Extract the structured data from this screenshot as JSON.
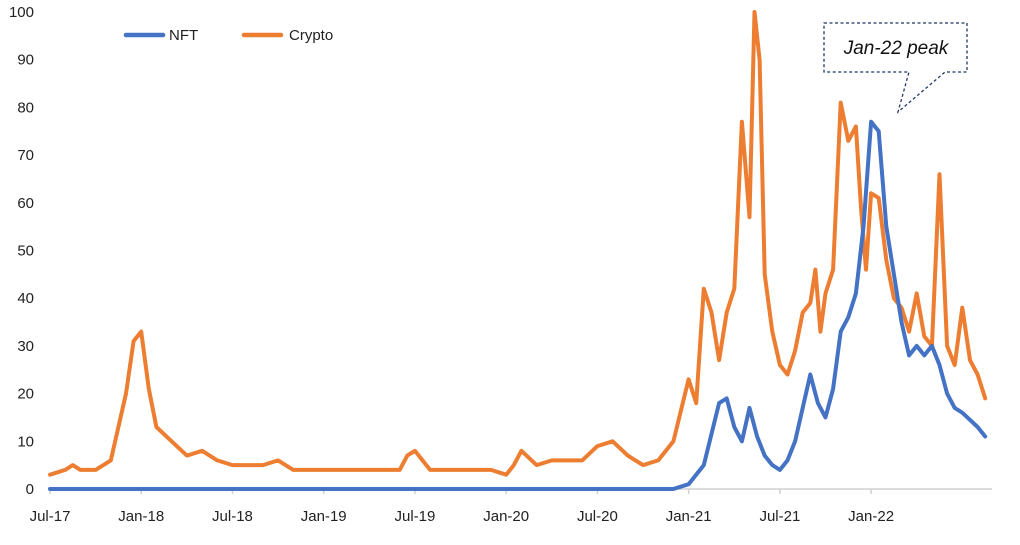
{
  "chart_data": {
    "type": "line",
    "title": "",
    "xlabel": "",
    "ylabel": "",
    "ylim": [
      0,
      100
    ],
    "y_ticks": [
      0,
      10,
      20,
      30,
      40,
      50,
      60,
      70,
      80,
      90,
      100
    ],
    "x_ticks": [
      "Jul-17",
      "Jan-18",
      "Jul-18",
      "Jan-19",
      "Jul-19",
      "Jan-20",
      "Jul-20",
      "Jan-21",
      "Jul-21",
      "Jan-22"
    ],
    "grid": false,
    "legend": "top-left",
    "annotation": {
      "text": "Jan-22 peak",
      "target": "Jan-22",
      "value": 77
    },
    "series": [
      {
        "name": "NFT",
        "color": "#4472C4",
        "points": [
          [
            "Jul-17",
            0
          ],
          [
            "Dec-20",
            0
          ],
          [
            "Jan-21",
            1
          ],
          [
            "Feb-21",
            5
          ],
          [
            "Mar-21",
            18
          ],
          [
            "Mar-21",
            19
          ],
          [
            "Apr-21",
            13
          ],
          [
            "Apr-21",
            10
          ],
          [
            "May-21",
            17
          ],
          [
            "May-21",
            11
          ],
          [
            "Jun-21",
            7
          ],
          [
            "Jun-21",
            5
          ],
          [
            "Jul-21",
            4
          ],
          [
            "Jul-21",
            6
          ],
          [
            "Aug-21",
            10
          ],
          [
            "Sep-21",
            24
          ],
          [
            "Sep-21",
            18
          ],
          [
            "Oct-21",
            15
          ],
          [
            "Oct-21",
            21
          ],
          [
            "Nov-21",
            33
          ],
          [
            "Nov-21",
            36
          ],
          [
            "Dec-21",
            41
          ],
          [
            "Dec-21",
            55
          ],
          [
            "Jan-22",
            77
          ],
          [
            "Jan-22",
            75
          ],
          [
            "Feb-22",
            55
          ],
          [
            "Mar-22",
            35
          ],
          [
            "Mar-22",
            28
          ],
          [
            "Apr-22",
            30
          ],
          [
            "Apr-22",
            28
          ],
          [
            "May-22",
            30
          ],
          [
            "May-22",
            26
          ],
          [
            "Jun-22",
            20
          ],
          [
            "Jun-22",
            17
          ],
          [
            "Jul-22",
            16
          ],
          [
            "Aug-22",
            13
          ],
          [
            "Aug-22",
            11
          ]
        ]
      },
      {
        "name": "Crypto",
        "color": "#ED7D31",
        "points": [
          [
            "Jul-17",
            3
          ],
          [
            "Aug-17",
            4
          ],
          [
            "Aug-17",
            5
          ],
          [
            "Sep-17",
            4
          ],
          [
            "Oct-17",
            4
          ],
          [
            "Nov-17",
            6
          ],
          [
            "Dec-17",
            20
          ],
          [
            "Dec-17",
            31
          ],
          [
            "Jan-18",
            33
          ],
          [
            "Jan-18",
            21
          ],
          [
            "Feb-18",
            13
          ],
          [
            "Mar-18",
            10
          ],
          [
            "Apr-18",
            7
          ],
          [
            "May-18",
            8
          ],
          [
            "Jun-18",
            6
          ],
          [
            "Jul-18",
            5
          ],
          [
            "Aug-18",
            5
          ],
          [
            "Sep-18",
            5
          ],
          [
            "Oct-18",
            6
          ],
          [
            "Nov-18",
            4
          ],
          [
            "Jan-19",
            4
          ],
          [
            "Jun-19",
            4
          ],
          [
            "Jun-19",
            7
          ],
          [
            "Jul-19",
            8
          ],
          [
            "Aug-19",
            4
          ],
          [
            "Dec-19",
            4
          ],
          [
            "Jan-20",
            3
          ],
          [
            "Jan-20",
            5
          ],
          [
            "Feb-20",
            8
          ],
          [
            "Mar-20",
            5
          ],
          [
            "Apr-20",
            6
          ],
          [
            "May-20",
            6
          ],
          [
            "Jun-20",
            6
          ],
          [
            "Jul-20",
            9
          ],
          [
            "Aug-20",
            10
          ],
          [
            "Sep-20",
            7
          ],
          [
            "Oct-20",
            5
          ],
          [
            "Nov-20",
            6
          ],
          [
            "Dec-20",
            10
          ],
          [
            "Jan-21",
            23
          ],
          [
            "Jan-21",
            18
          ],
          [
            "Feb-21",
            42
          ],
          [
            "Feb-21",
            37
          ],
          [
            "Mar-21",
            27
          ],
          [
            "Mar-21",
            37
          ],
          [
            "Apr-21",
            42
          ],
          [
            "Apr-21",
            77
          ],
          [
            "May-21",
            57
          ],
          [
            "May-21",
            100
          ],
          [
            "May-21",
            90
          ],
          [
            "Jun-21",
            45
          ],
          [
            "Jun-21",
            33
          ],
          [
            "Jul-21",
            26
          ],
          [
            "Jul-21",
            24
          ],
          [
            "Aug-21",
            29
          ],
          [
            "Aug-21",
            37
          ],
          [
            "Sep-21",
            39
          ],
          [
            "Sep-21",
            46
          ],
          [
            "Sep-21",
            33
          ],
          [
            "Oct-21",
            41
          ],
          [
            "Oct-21",
            46
          ],
          [
            "Nov-21",
            81
          ],
          [
            "Nov-21",
            73
          ],
          [
            "Dec-21",
            76
          ],
          [
            "Dec-21",
            59
          ],
          [
            "Dec-21",
            46
          ],
          [
            "Jan-22",
            62
          ],
          [
            "Jan-22",
            61
          ],
          [
            "Feb-22",
            48
          ],
          [
            "Feb-22",
            40
          ],
          [
            "Mar-22",
            38
          ],
          [
            "Mar-22",
            33
          ],
          [
            "Apr-22",
            41
          ],
          [
            "Apr-22",
            32
          ],
          [
            "May-22",
            30
          ],
          [
            "May-22",
            66
          ],
          [
            "Jun-22",
            30
          ],
          [
            "Jun-22",
            26
          ],
          [
            "Jul-22",
            38
          ],
          [
            "Jul-22",
            27
          ],
          [
            "Aug-22",
            24
          ],
          [
            "Aug-22",
            19
          ]
        ]
      }
    ]
  }
}
